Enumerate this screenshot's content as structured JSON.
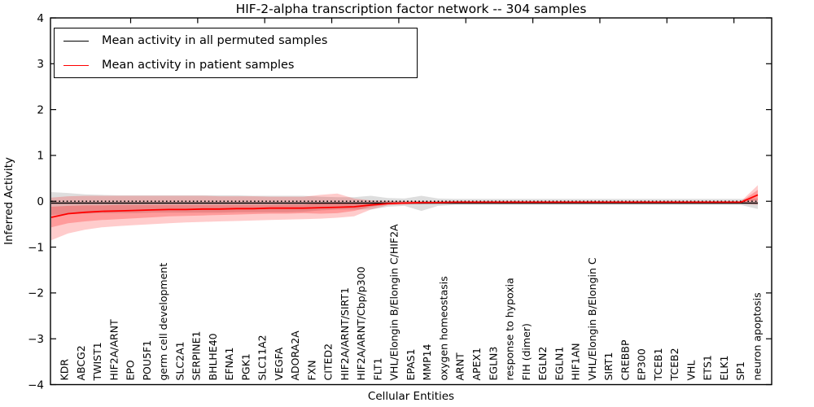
{
  "chart_data": {
    "type": "line",
    "title": "HIF-2-alpha transcription factor network -- 304 samples",
    "xlabel": "Cellular Entities",
    "ylabel": "Inferred Activity",
    "ylim": [
      -4,
      4
    ],
    "ytick_labels": [
      "4",
      "3",
      "2",
      "1",
      "0",
      "−1",
      "−2",
      "−3",
      "−4"
    ],
    "yticks": [
      4,
      3,
      2,
      1,
      0,
      -1,
      -2,
      -3,
      -4
    ],
    "grid": false,
    "legend": {
      "position": "upper left",
      "entries": [
        {
          "label": "Mean activity in all permuted samples",
          "color": "#000000"
        },
        {
          "label": "Mean activity in patient samples",
          "color": "#ff0000"
        }
      ]
    },
    "categories": [
      "KDR",
      "ABCG2",
      "TWIST1",
      "HIF2A/ARNT",
      "EPO",
      "POU5F1",
      "germ cell development",
      "SLC2A1",
      "SERPINE1",
      "BHLHE40",
      "EFNA1",
      "PGK1",
      "SLC11A2",
      "VEGFA",
      "ADORA2A",
      "FXN",
      "CITED2",
      "HIF2A/ARNT/SIRT1",
      "HIF2A/ARNT/Cbp/p300",
      "FLT1",
      "VHL/Elongin B/Elongin C/HIF2A",
      "EPAS1",
      "MMP14",
      "oxygen homeostasis",
      "ARNT",
      "APEX1",
      "EGLN3",
      "response to hypoxia",
      "FIH (dimer)",
      "EGLN2",
      "EGLN1",
      "HIF1AN",
      "VHL/Elongin B/Elongin C",
      "SIRT1",
      "CREBBP",
      "EP300",
      "TCEB1",
      "TCEB2",
      "VHL",
      "ETS1",
      "ELK1",
      "SP1",
      "neuron apoptosis"
    ],
    "series": [
      {
        "name": "Mean activity in all permuted samples",
        "kind": "line",
        "color": "#000000",
        "values": [
          -0.04,
          -0.04,
          -0.04,
          -0.04,
          -0.04,
          -0.04,
          -0.04,
          -0.04,
          -0.04,
          -0.04,
          -0.04,
          -0.04,
          -0.04,
          -0.04,
          -0.04,
          -0.04,
          -0.04,
          -0.04,
          -0.04,
          -0.04,
          -0.04,
          -0.04,
          -0.04,
          -0.04,
          -0.04,
          -0.04,
          -0.04,
          -0.04,
          -0.04,
          -0.04,
          -0.04,
          -0.04,
          -0.04,
          -0.04,
          -0.04,
          -0.04,
          -0.04,
          -0.04,
          -0.04,
          -0.04,
          -0.04,
          -0.04,
          -0.04
        ]
      },
      {
        "name": "Mean activity in patient samples",
        "kind": "line",
        "color": "#ff0000",
        "values": [
          -0.35,
          -0.27,
          -0.24,
          -0.22,
          -0.21,
          -0.2,
          -0.19,
          -0.18,
          -0.18,
          -0.17,
          -0.17,
          -0.16,
          -0.16,
          -0.15,
          -0.15,
          -0.15,
          -0.14,
          -0.13,
          -0.12,
          -0.08,
          -0.05,
          -0.04,
          -0.03,
          -0.03,
          -0.02,
          -0.02,
          -0.02,
          -0.02,
          -0.02,
          -0.02,
          -0.02,
          -0.02,
          -0.02,
          -0.02,
          -0.02,
          -0.02,
          -0.02,
          -0.02,
          -0.02,
          -0.02,
          -0.02,
          -0.02,
          0.14
        ]
      },
      {
        "name": "Permuted samples band",
        "kind": "band",
        "color": "#000000",
        "opacity": 0.13,
        "hi": [
          0.2,
          0.18,
          0.15,
          0.14,
          0.13,
          0.13,
          0.13,
          0.13,
          0.13,
          0.13,
          0.13,
          0.13,
          0.12,
          0.12,
          0.12,
          0.12,
          0.1,
          0.09,
          0.09,
          0.12,
          0.07,
          0.06,
          0.12,
          0.06,
          0.05,
          0.05,
          0.05,
          0.05,
          0.05,
          0.05,
          0.05,
          0.05,
          0.05,
          0.05,
          0.05,
          0.05,
          0.05,
          0.05,
          0.05,
          0.05,
          0.05,
          0.05,
          0.06
        ],
        "lo": [
          -0.3,
          -0.28,
          -0.27,
          -0.26,
          -0.26,
          -0.26,
          -0.25,
          -0.25,
          -0.25,
          -0.25,
          -0.25,
          -0.24,
          -0.24,
          -0.24,
          -0.24,
          -0.23,
          -0.2,
          -0.18,
          -0.18,
          -0.18,
          -0.12,
          -0.1,
          -0.21,
          -0.1,
          -0.08,
          -0.08,
          -0.08,
          -0.08,
          -0.08,
          -0.08,
          -0.08,
          -0.08,
          -0.08,
          -0.08,
          -0.08,
          -0.08,
          -0.08,
          -0.08,
          -0.08,
          -0.08,
          -0.08,
          -0.08,
          -0.17
        ]
      },
      {
        "name": "Patient samples outer band",
        "kind": "band",
        "color": "#ff0000",
        "opacity": 0.2,
        "hi": [
          0.08,
          0.11,
          0.12,
          0.12,
          0.12,
          0.12,
          0.12,
          0.12,
          0.12,
          0.12,
          0.11,
          0.11,
          0.11,
          0.1,
          0.1,
          0.1,
          0.14,
          0.17,
          0.06,
          0.02,
          0.01,
          0.0,
          0.0,
          0.0,
          0.0,
          0.0,
          0.0,
          0.0,
          0.0,
          0.0,
          0.0,
          0.0,
          0.0,
          0.0,
          0.0,
          0.0,
          0.0,
          0.0,
          0.0,
          0.0,
          0.0,
          0.0,
          0.35
        ],
        "lo": [
          -0.85,
          -0.7,
          -0.62,
          -0.57,
          -0.54,
          -0.52,
          -0.5,
          -0.48,
          -0.46,
          -0.45,
          -0.44,
          -0.43,
          -0.42,
          -0.41,
          -0.4,
          -0.39,
          -0.38,
          -0.36,
          -0.33,
          -0.18,
          -0.09,
          -0.07,
          -0.06,
          -0.05,
          -0.05,
          -0.05,
          -0.05,
          -0.05,
          -0.05,
          -0.05,
          -0.05,
          -0.05,
          -0.05,
          -0.05,
          -0.05,
          -0.05,
          -0.05,
          -0.05,
          -0.05,
          -0.05,
          -0.05,
          -0.05,
          -0.08
        ]
      },
      {
        "name": "Patient samples inner band",
        "kind": "band",
        "color": "#ff0000",
        "opacity": 0.24,
        "hi": [
          -0.12,
          -0.1,
          -0.09,
          -0.09,
          -0.08,
          -0.08,
          -0.08,
          -0.08,
          -0.08,
          -0.08,
          -0.08,
          -0.08,
          -0.08,
          -0.08,
          -0.07,
          -0.07,
          -0.04,
          -0.02,
          -0.05,
          -0.04,
          -0.02,
          -0.01,
          -0.01,
          -0.01,
          -0.01,
          -0.01,
          -0.01,
          -0.01,
          -0.01,
          -0.01,
          -0.01,
          -0.01,
          -0.01,
          -0.01,
          -0.01,
          -0.01,
          -0.01,
          -0.01,
          -0.01,
          -0.01,
          -0.01,
          -0.01,
          0.25
        ],
        "lo": [
          -0.57,
          -0.48,
          -0.44,
          -0.41,
          -0.39,
          -0.37,
          -0.35,
          -0.33,
          -0.32,
          -0.31,
          -0.3,
          -0.29,
          -0.28,
          -0.27,
          -0.27,
          -0.26,
          -0.27,
          -0.26,
          -0.21,
          -0.12,
          -0.07,
          -0.05,
          -0.05,
          -0.04,
          -0.04,
          -0.04,
          -0.04,
          -0.04,
          -0.04,
          -0.04,
          -0.04,
          -0.04,
          -0.04,
          -0.04,
          -0.04,
          -0.04,
          -0.04,
          -0.04,
          -0.04,
          -0.04,
          -0.04,
          -0.04,
          0.03
        ]
      }
    ],
    "zero_line": {
      "y": 0,
      "style": "dotted",
      "color": "#000000"
    }
  },
  "colors": {
    "background": "#ffffff",
    "axis": "#000000",
    "permuted_line": "#000000",
    "patient_line": "#ff0000"
  }
}
